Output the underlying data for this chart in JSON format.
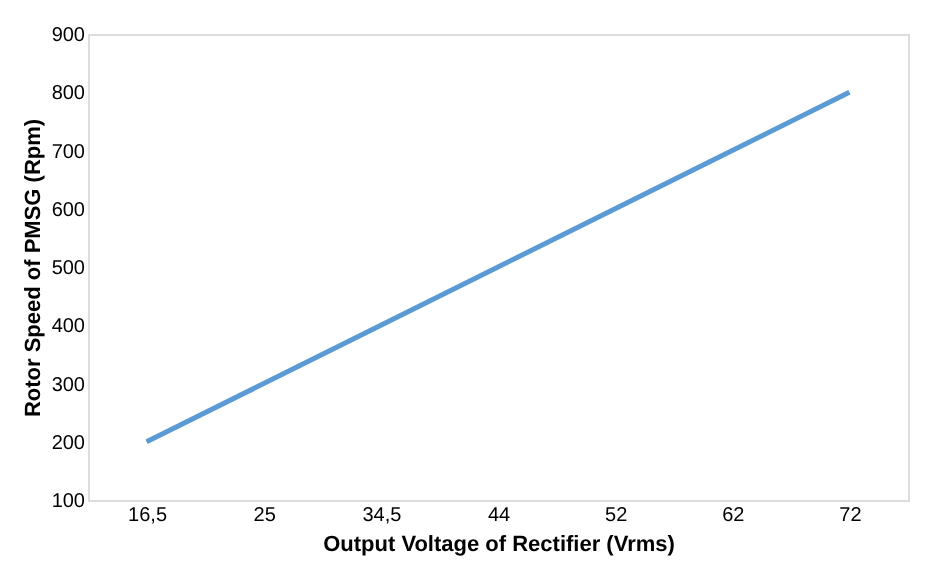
{
  "chart_data": {
    "type": "line",
    "xlabel": "Output Voltage of Rectifier (Vrms)",
    "ylabel": "Rotor  Speed of PMSG (Rpm)",
    "categories": [
      "16,5",
      "25",
      "34,5",
      "44",
      "52",
      "62",
      "72"
    ],
    "series": [
      {
        "color": "#5b9bd5",
        "values": [
          200,
          300,
          400,
          500,
          600,
          700,
          800
        ]
      }
    ],
    "ylim": [
      100,
      900
    ],
    "yticks": [
      100,
      200,
      300,
      400,
      500,
      600,
      700,
      800,
      900
    ],
    "grid": false,
    "marker": "none",
    "line_style": "solid"
  }
}
